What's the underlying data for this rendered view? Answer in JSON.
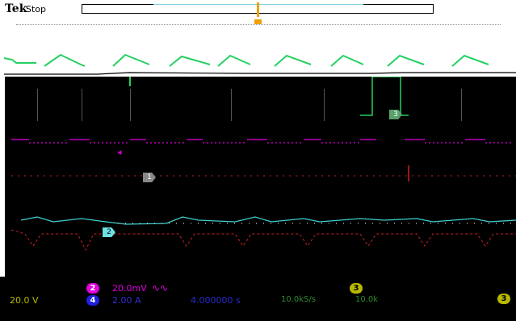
{
  "header": {
    "brand": "Tek",
    "run_state": "Stop"
  },
  "channels": {
    "ch1": {
      "scale": "20.0 V",
      "color": "#b8b800"
    },
    "ch2": {
      "number": "2",
      "scale": "20.0mV",
      "bandwidth_symbol": "∿∿",
      "color": "#e000e0"
    },
    "ch3": {
      "number": "3",
      "color": "#5aa06a"
    },
    "ch4": {
      "number": "4",
      "scale": "2.00 A",
      "color": "#2020e0"
    }
  },
  "markers": {
    "ch1": "1",
    "ch2": "2",
    "ch3": "3"
  },
  "horizontal": {
    "time": "4.000000 s",
    "sample_rate": "10.0kS/s",
    "record_length": "10.0k"
  },
  "trigger": {
    "source_badge": "3",
    "source_badge_right": "3",
    "color": "#f0a000"
  }
}
